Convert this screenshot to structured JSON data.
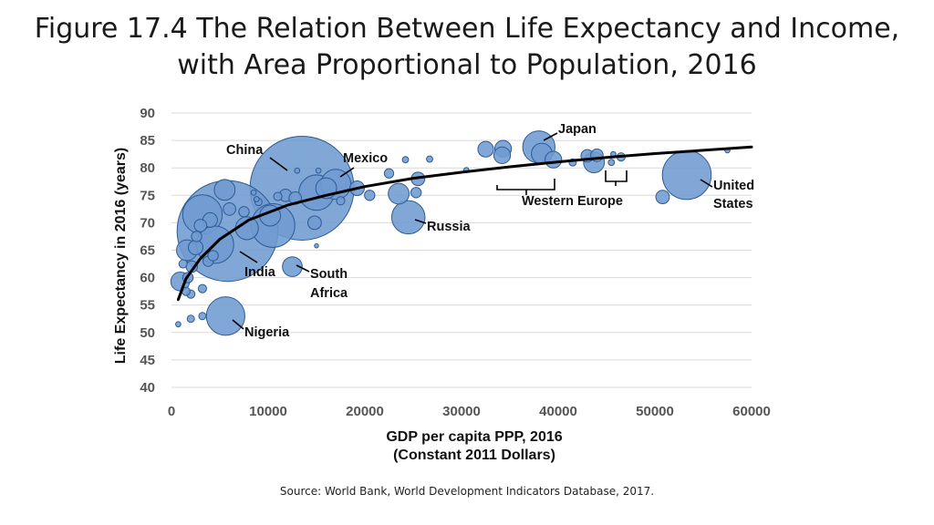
{
  "title": {
    "line1": "Figure 17.4 The Relation Between Life Expectancy and Income,",
    "line2": "with Area Proportional to Population, 2016"
  },
  "source": "Source: World Bank, World Development Indicators Database, 2017.",
  "colors": {
    "bubble_fill": "#6f9bd1",
    "bubble_stroke": "#2d5b94",
    "grid": "#d9d9d9",
    "curve": "#000000"
  },
  "chart_data": {
    "type": "scatter",
    "title": "",
    "xlabel": [
      "GDP per capita PPP, 2016",
      "(Constant 2011 Dollars)"
    ],
    "ylabel": "Life Expectancy in 2016 (years)",
    "xlim": [
      0,
      60000
    ],
    "ylim": [
      40,
      90
    ],
    "xticks": [
      "0",
      "10000",
      "20000",
      "30000",
      "40000",
      "50000",
      "60000"
    ],
    "yticks": [
      "40",
      "45",
      "50",
      "55",
      "60",
      "65",
      "70",
      "75",
      "80",
      "85",
      "90"
    ],
    "grid": "horizontal",
    "trend_curve": [
      [
        700,
        56
      ],
      [
        1500,
        59.8
      ],
      [
        3000,
        63.5
      ],
      [
        5000,
        67
      ],
      [
        8000,
        70.5
      ],
      [
        12000,
        73.2
      ],
      [
        16000,
        75
      ],
      [
        20000,
        76.6
      ],
      [
        25000,
        78.1
      ],
      [
        30000,
        79.2
      ],
      [
        35000,
        80.2
      ],
      [
        40000,
        81.1
      ],
      [
        45000,
        81.9
      ],
      [
        50000,
        82.6
      ],
      [
        55000,
        83.2
      ],
      [
        60000,
        83.8
      ]
    ],
    "countries": [
      {
        "name": "China",
        "gdp": 13500,
        "life_exp": 76.3,
        "pop_scale": 1.0
      },
      {
        "name": "India",
        "gdp": 5800,
        "life_exp": 68.5,
        "pop_scale": 0.97
      },
      {
        "name": "United States",
        "gdp": 53300,
        "life_exp": 78.7,
        "pop_scale": 0.47
      },
      {
        "name": "Japan",
        "gdp": 38000,
        "life_exp": 83.8,
        "pop_scale": 0.31
      },
      {
        "name": "Russia",
        "gdp": 24500,
        "life_exp": 71.0,
        "pop_scale": 0.32
      },
      {
        "name": "Mexico",
        "gdp": 17000,
        "life_exp": 77.0,
        "pop_scale": 0.29
      },
      {
        "name": "Nigeria",
        "gdp": 5600,
        "life_exp": 53.0,
        "pop_scale": 0.37
      },
      {
        "name": "South Africa",
        "gdp": 12500,
        "life_exp": 62.0,
        "pop_scale": 0.19
      },
      {
        "name": "",
        "gdp": 15000,
        "life_exp": 75.5,
        "pop_scale": 0.34
      },
      {
        "name": "",
        "gdp": 10500,
        "life_exp": 69.5,
        "pop_scale": 0.42
      },
      {
        "name": "",
        "gdp": 3200,
        "life_exp": 71.5,
        "pop_scale": 0.38
      },
      {
        "name": "",
        "gdp": 4500,
        "life_exp": 66.0,
        "pop_scale": 0.36
      },
      {
        "name": "",
        "gdp": 1600,
        "life_exp": 65.0,
        "pop_scale": 0.2
      },
      {
        "name": "",
        "gdp": 900,
        "life_exp": 59.3,
        "pop_scale": 0.18
      },
      {
        "name": "",
        "gdp": 5500,
        "life_exp": 76.0,
        "pop_scale": 0.2
      },
      {
        "name": "",
        "gdp": 10200,
        "life_exp": 71.3,
        "pop_scale": 0.2
      },
      {
        "name": "",
        "gdp": 7800,
        "life_exp": 69.0,
        "pop_scale": 0.22
      },
      {
        "name": "",
        "gdp": 23500,
        "life_exp": 75.3,
        "pop_scale": 0.2
      },
      {
        "name": "",
        "gdp": 16000,
        "life_exp": 76.3,
        "pop_scale": 0.2
      },
      {
        "name": "",
        "gdp": 34300,
        "life_exp": 83.5,
        "pop_scale": 0.16
      },
      {
        "name": "",
        "gdp": 34200,
        "life_exp": 82.3,
        "pop_scale": 0.16
      },
      {
        "name": "",
        "gdp": 38300,
        "life_exp": 82.6,
        "pop_scale": 0.2
      },
      {
        "name": "",
        "gdp": 39500,
        "life_exp": 81.5,
        "pop_scale": 0.16
      },
      {
        "name": "",
        "gdp": 43700,
        "life_exp": 81.0,
        "pop_scale": 0.2
      },
      {
        "name": "",
        "gdp": 43000,
        "life_exp": 82.2,
        "pop_scale": 0.12
      },
      {
        "name": "",
        "gdp": 44000,
        "life_exp": 82.3,
        "pop_scale": 0.12
      },
      {
        "name": "",
        "gdp": 32500,
        "life_exp": 83.4,
        "pop_scale": 0.15
      },
      {
        "name": "",
        "gdp": 50800,
        "life_exp": 74.7,
        "pop_scale": 0.13
      },
      {
        "name": "",
        "gdp": 25500,
        "life_exp": 78.0,
        "pop_scale": 0.13
      },
      {
        "name": "",
        "gdp": 19200,
        "life_exp": 76.3,
        "pop_scale": 0.14
      },
      {
        "name": "",
        "gdp": 20500,
        "life_exp": 75.0,
        "pop_scale": 0.1
      },
      {
        "name": "",
        "gdp": 14800,
        "life_exp": 70.0,
        "pop_scale": 0.13
      },
      {
        "name": "",
        "gdp": 25300,
        "life_exp": 75.5,
        "pop_scale": 0.1
      },
      {
        "name": "",
        "gdp": 11800,
        "life_exp": 75.0,
        "pop_scale": 0.12
      },
      {
        "name": "",
        "gdp": 12800,
        "life_exp": 74.5,
        "pop_scale": 0.12
      },
      {
        "name": "",
        "gdp": 3000,
        "life_exp": 69.5,
        "pop_scale": 0.12
      },
      {
        "name": "",
        "gdp": 4000,
        "life_exp": 70.5,
        "pop_scale": 0.14
      },
      {
        "name": "",
        "gdp": 2500,
        "life_exp": 65.5,
        "pop_scale": 0.14
      },
      {
        "name": "",
        "gdp": 2100,
        "life_exp": 62.0,
        "pop_scale": 0.11
      },
      {
        "name": "",
        "gdp": 3800,
        "life_exp": 63.0,
        "pop_scale": 0.1
      },
      {
        "name": "",
        "gdp": 1700,
        "life_exp": 60.0,
        "pop_scale": 0.1
      },
      {
        "name": "",
        "gdp": 3200,
        "life_exp": 58.0,
        "pop_scale": 0.08
      },
      {
        "name": "",
        "gdp": 2000,
        "life_exp": 57.0,
        "pop_scale": 0.08
      },
      {
        "name": "",
        "gdp": 1500,
        "life_exp": 57.5,
        "pop_scale": 0.08
      },
      {
        "name": "",
        "gdp": 2000,
        "life_exp": 52.5,
        "pop_scale": 0.07
      },
      {
        "name": "",
        "gdp": 3200,
        "life_exp": 53.0,
        "pop_scale": 0.07
      },
      {
        "name": "",
        "gdp": 700,
        "life_exp": 51.5,
        "pop_scale": 0.05
      },
      {
        "name": "",
        "gdp": 6000,
        "life_exp": 72.5,
        "pop_scale": 0.12
      },
      {
        "name": "",
        "gdp": 7500,
        "life_exp": 72.0,
        "pop_scale": 0.1
      },
      {
        "name": "",
        "gdp": 9000,
        "life_exp": 73.8,
        "pop_scale": 0.07
      },
      {
        "name": "",
        "gdp": 17500,
        "life_exp": 74.0,
        "pop_scale": 0.08
      },
      {
        "name": "",
        "gdp": 13000,
        "life_exp": 79.5,
        "pop_scale": 0.05
      },
      {
        "name": "",
        "gdp": 15200,
        "life_exp": 79.5,
        "pop_scale": 0.05
      },
      {
        "name": "",
        "gdp": 15000,
        "life_exp": 65.8,
        "pop_scale": 0.04
      },
      {
        "name": "",
        "gdp": 22500,
        "life_exp": 79.0,
        "pop_scale": 0.09
      },
      {
        "name": "",
        "gdp": 24200,
        "life_exp": 81.5,
        "pop_scale": 0.06
      },
      {
        "name": "",
        "gdp": 26700,
        "life_exp": 81.6,
        "pop_scale": 0.06
      },
      {
        "name": "",
        "gdp": 30500,
        "life_exp": 79.6,
        "pop_scale": 0.05
      },
      {
        "name": "",
        "gdp": 41500,
        "life_exp": 81.0,
        "pop_scale": 0.07
      },
      {
        "name": "",
        "gdp": 45500,
        "life_exp": 81.0,
        "pop_scale": 0.06
      },
      {
        "name": "",
        "gdp": 46500,
        "life_exp": 82.0,
        "pop_scale": 0.08
      },
      {
        "name": "",
        "gdp": 45700,
        "life_exp": 82.5,
        "pop_scale": 0.05
      },
      {
        "name": "",
        "gdp": 57500,
        "life_exp": 83.2,
        "pop_scale": 0.05
      },
      {
        "name": "",
        "gdp": 8500,
        "life_exp": 75.5,
        "pop_scale": 0.05
      },
      {
        "name": "",
        "gdp": 8800,
        "life_exp": 74.3,
        "pop_scale": 0.05
      },
      {
        "name": "",
        "gdp": 1200,
        "life_exp": 62.5,
        "pop_scale": 0.08
      },
      {
        "name": "",
        "gdp": 2600,
        "life_exp": 67.5,
        "pop_scale": 0.1
      },
      {
        "name": "",
        "gdp": 4300,
        "life_exp": 64.0,
        "pop_scale": 0.1
      },
      {
        "name": "",
        "gdp": 11000,
        "life_exp": 74.8,
        "pop_scale": 0.08
      }
    ],
    "annotations": [
      {
        "id": "china",
        "text": [
          "China"
        ]
      },
      {
        "id": "india",
        "text": [
          "India"
        ]
      },
      {
        "id": "mexico",
        "text": [
          "Mexico"
        ]
      },
      {
        "id": "japan",
        "text": [
          "Japan"
        ]
      },
      {
        "id": "russia",
        "text": [
          "Russia"
        ]
      },
      {
        "id": "nigeria",
        "text": [
          "Nigeria"
        ]
      },
      {
        "id": "south-africa",
        "text": [
          "South",
          "Africa"
        ]
      },
      {
        "id": "united-states",
        "text": [
          "United",
          "States"
        ]
      },
      {
        "id": "western-europe",
        "text": [
          "Western Europe"
        ]
      }
    ]
  }
}
